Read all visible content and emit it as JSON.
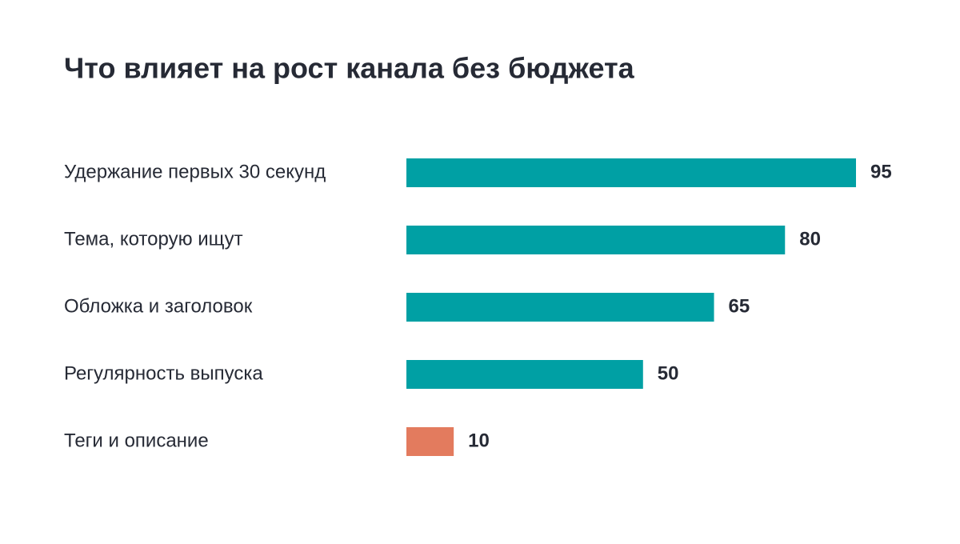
{
  "chart_data": {
    "type": "bar",
    "orientation": "horizontal",
    "title": "Что влияет на рост канала без бюджета",
    "categories": [
      "Удержание первых 30 секунд",
      "Тема, которую ищут",
      "Обложка и заголовок",
      "Регулярность выпуска",
      "Теги и описание"
    ],
    "values": [
      95,
      80,
      65,
      50,
      10
    ],
    "colors": [
      "#00a0a4",
      "#00a0a4",
      "#00a0a4",
      "#00a0a4",
      "#e37b5e"
    ]
  }
}
